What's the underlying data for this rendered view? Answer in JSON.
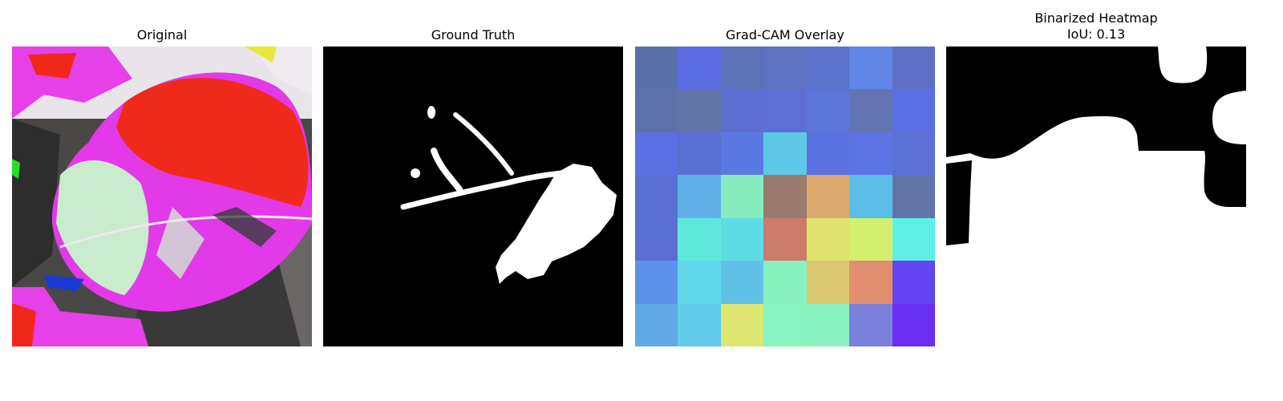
{
  "panels": {
    "original_title": "Original",
    "ground_truth_title": "Ground Truth",
    "gradcam_title": "Grad-CAM Overlay",
    "binarized_title_line1": "Binarized Heatmap",
    "binarized_title_line2": "IoU: 0.13"
  },
  "gradcam_grid": [
    [
      "#5a71a8",
      "#5a6ce0",
      "#5b72b8",
      "#5d72c3",
      "#5b73cc",
      "#5f85e6",
      "#5d70c6"
    ],
    [
      "#5d72a8",
      "#6273a8",
      "#5c6fd0",
      "#5c6fd5",
      "#5d76dc",
      "#6275b2",
      "#5b6fe4"
    ],
    [
      "#5c70e4",
      "#5b6fd2",
      "#5a78e2",
      "#5fc8e8",
      "#5b72e0",
      "#5c74e4",
      "#5c70d8"
    ],
    [
      "#5b6fd0",
      "#5fb0e8",
      "#86ecbe",
      "#9a7a6c",
      "#dba870",
      "#5cbce8",
      "#6174a8"
    ],
    [
      "#5b6fd3",
      "#5ee8dc",
      "#5ddce6",
      "#cc7a6e",
      "#e0e26e",
      "#d2f06e",
      "#5ef0e8"
    ],
    [
      "#5d93e8",
      "#5ed8ea",
      "#5fc2e6",
      "#87f2c0",
      "#dac870",
      "#e08e6e",
      "#6244f0"
    ],
    [
      "#60aae6",
      "#5fcbe8",
      "#dce670",
      "#88f4c0",
      "#8af2c0",
      "#7a80dc",
      "#6a2ef2"
    ]
  ],
  "colors": {
    "background": "#ffffff",
    "mask_foreground": "#ffffff",
    "mask_background": "#000000",
    "leaf_magenta": "#e23ae8",
    "leaf_red": "#f02a1a",
    "leaf_pale": "#c8eccc",
    "bg_dark": "#3b3a3a",
    "bg_gray": "#6e6a6a"
  }
}
